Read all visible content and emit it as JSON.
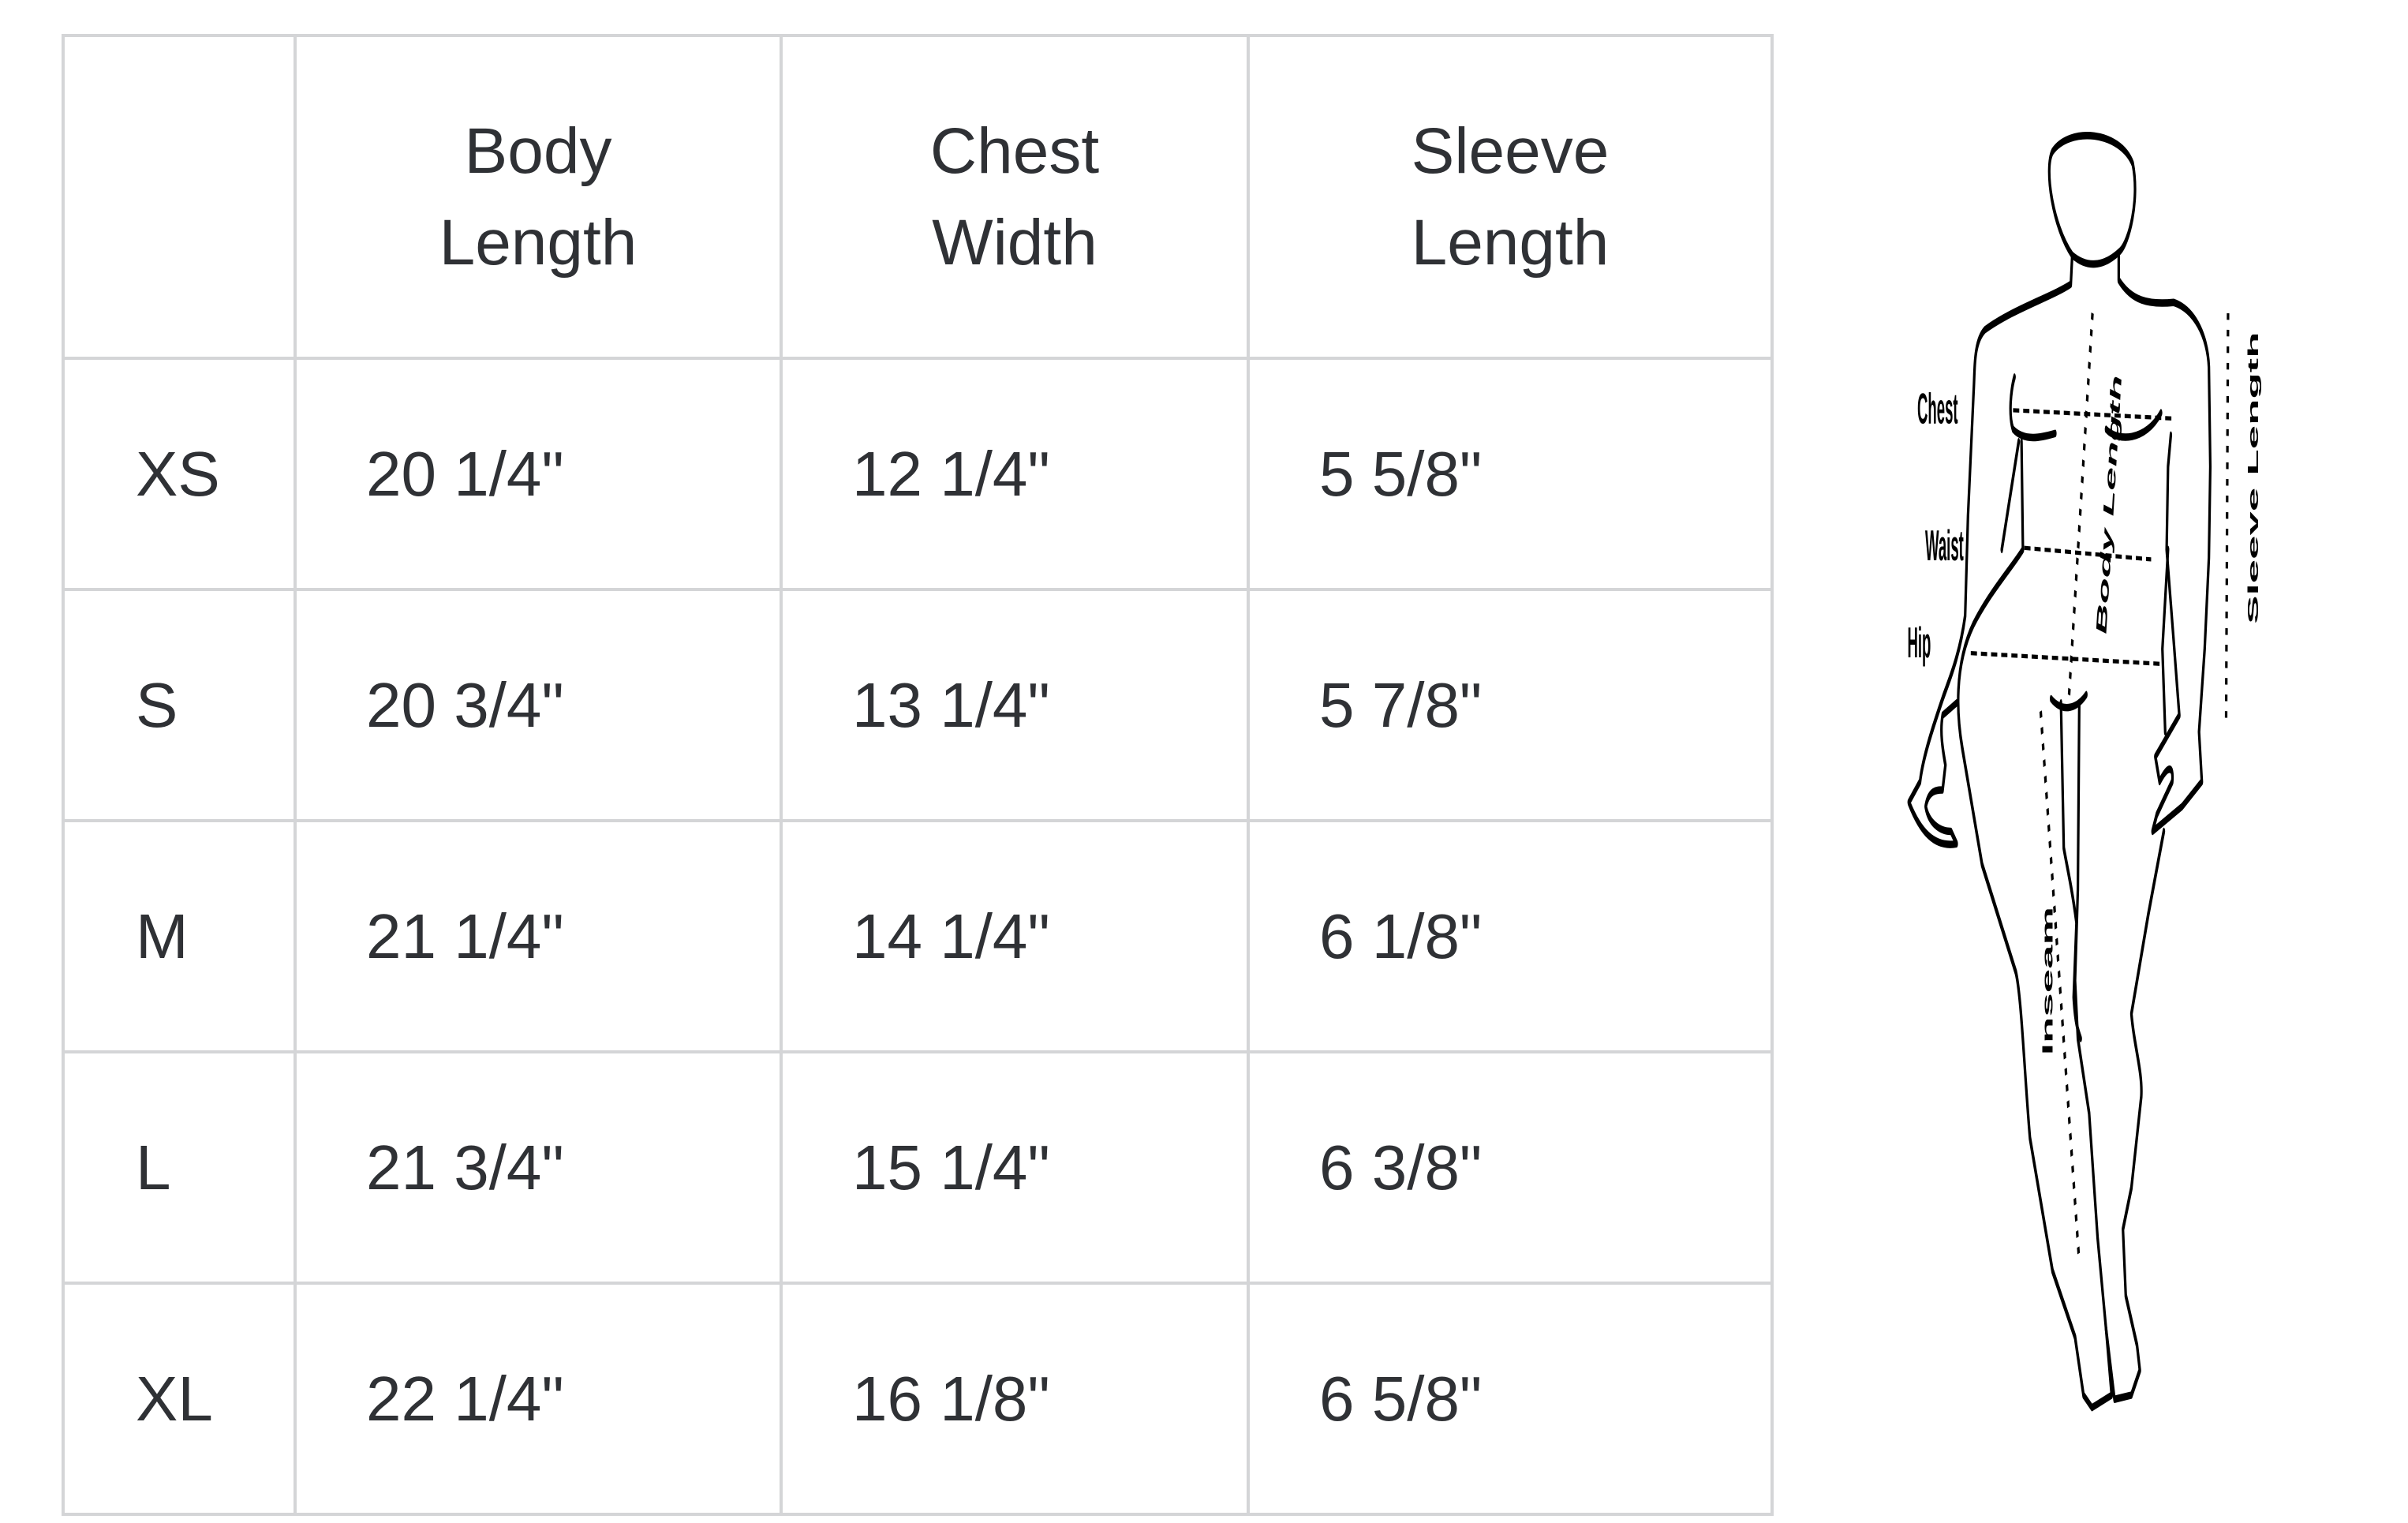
{
  "table": {
    "headers": [
      {
        "line1": "",
        "line2": ""
      },
      {
        "line1": "Body",
        "line2": "Length"
      },
      {
        "line1": "Chest",
        "line2": "Width"
      },
      {
        "line1": "Sleeve",
        "line2": "Length"
      }
    ],
    "rows": [
      {
        "size": "XS",
        "body_length": "20 1/4\"",
        "chest_width": "12 1/4\"",
        "sleeve_length": "5 5/8\""
      },
      {
        "size": "S",
        "body_length": "20 3/4\"",
        "chest_width": "13 1/4\"",
        "sleeve_length": "5 7/8\""
      },
      {
        "size": "M",
        "body_length": "21 1/4\"",
        "chest_width": "14 1/4\"",
        "sleeve_length": "6 1/8\""
      },
      {
        "size": "L",
        "body_length": "21 3/4\"",
        "chest_width": "15 1/4\"",
        "sleeve_length": "6 3/8\""
      },
      {
        "size": "XL",
        "body_length": "22 1/4\"",
        "chest_width": "16 1/8\"",
        "sleeve_length": "6 5/8\""
      }
    ]
  },
  "figure": {
    "labels": {
      "chest": "Chest",
      "waist": "Waist",
      "hip": "Hip",
      "body_length": "Body Length",
      "sleeve_length": "Sleeve Length",
      "inseam": "Inseam"
    }
  },
  "colors": {
    "text": "#2f3135",
    "border": "#d4d5d7"
  }
}
